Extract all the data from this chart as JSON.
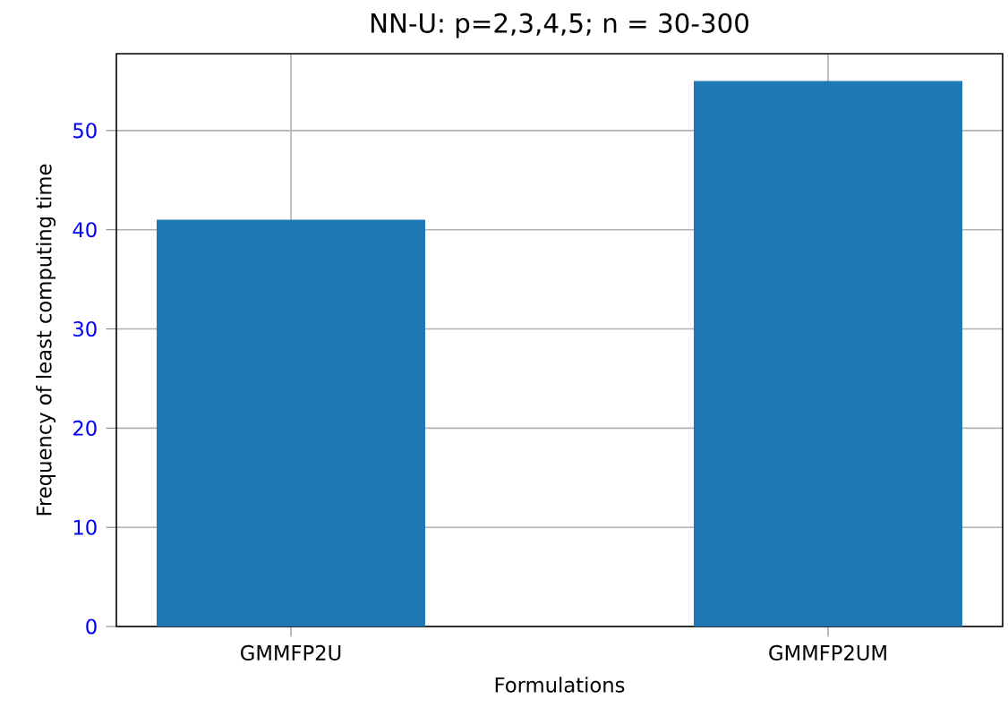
{
  "chart_data": {
    "type": "bar",
    "title": "NN-U: p=2,3,4,5; n = 30-300",
    "xlabel": "Formulations",
    "ylabel": "Frequency of least computing time",
    "categories": [
      "GMMFP2U",
      "GMMFP2UM"
    ],
    "values": [
      41,
      55
    ],
    "color": "#1f77b4",
    "ylim": [
      0,
      57.75
    ],
    "yticks": [
      0,
      10,
      20,
      30,
      40,
      50
    ],
    "grid": true
  }
}
